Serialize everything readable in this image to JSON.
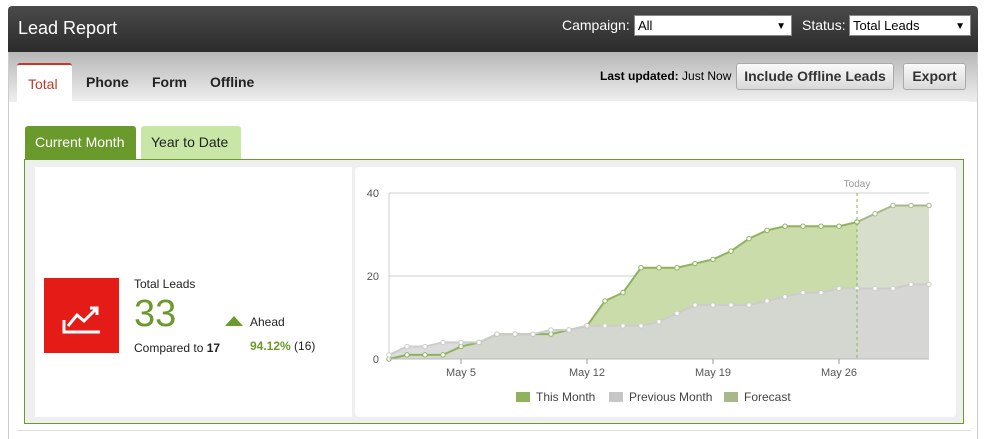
{
  "header": {
    "title": "Lead Report",
    "campaign_label": "Campaign:",
    "campaign_value": "All",
    "status_label": "Status:",
    "status_value": "Total Leads"
  },
  "tabs": [
    {
      "label": "Total",
      "active": true
    },
    {
      "label": "Phone",
      "active": false
    },
    {
      "label": "Form",
      "active": false
    },
    {
      "label": "Offline",
      "active": false
    }
  ],
  "toolbar": {
    "last_updated_label": "Last updated:",
    "last_updated_value": "Just Now",
    "include_offline_label": "Include Offline Leads",
    "export_label": "Export"
  },
  "subtabs": [
    {
      "label": "Current Month",
      "active": true
    },
    {
      "label": "Year to Date",
      "active": false
    }
  ],
  "kpi": {
    "icon": "trend-up-icon",
    "label": "Total Leads",
    "value": "33",
    "compared_prefix": "Compared to",
    "compared_value": "17",
    "ahead_label": "Ahead",
    "ahead_pct": "94.12%",
    "ahead_diff": "(16)"
  },
  "colors": {
    "header_bg": "#333333",
    "accent_green": "#6a9a2c",
    "tab_active_red": "#c0392b",
    "kpi_red": "#e41b17"
  },
  "chart_data": {
    "type": "area",
    "xlabels": [
      "May 5",
      "May 12",
      "May 19",
      "May 26"
    ],
    "xlabel_days": [
      5,
      12,
      19,
      26
    ],
    "x_range": [
      1,
      31
    ],
    "ylim": [
      0,
      40
    ],
    "yticks": [
      0,
      20,
      40
    ],
    "today_label": "Today",
    "today_day": 27,
    "grid": true,
    "legend_position": "bottom",
    "series": [
      {
        "name": "This Month",
        "color": "#8fb25c",
        "fill": "#c9dcaa",
        "x": [
          1,
          2,
          3,
          4,
          5,
          6,
          7,
          8,
          9,
          10,
          11,
          12,
          13,
          14,
          15,
          16,
          17,
          18,
          19,
          20,
          21,
          22,
          23,
          24,
          25,
          26,
          27
        ],
        "values": [
          0,
          1,
          1,
          1,
          3,
          4,
          6,
          6,
          6,
          6,
          7,
          8,
          14,
          16,
          22,
          22,
          22,
          23,
          24,
          26,
          29,
          31,
          32,
          32,
          32,
          32,
          33
        ]
      },
      {
        "name": "Previous Month",
        "color": "#cccccc",
        "fill": "#d6d6d6",
        "x": [
          1,
          2,
          3,
          4,
          5,
          6,
          7,
          8,
          9,
          10,
          11,
          12,
          13,
          14,
          15,
          16,
          17,
          18,
          19,
          20,
          21,
          22,
          23,
          24,
          25,
          26,
          27,
          28,
          29,
          30,
          31
        ],
        "values": [
          1,
          3,
          3,
          4,
          4,
          4,
          6,
          6,
          6,
          7,
          7,
          8,
          8,
          8,
          8,
          9,
          11,
          13,
          13,
          13,
          13,
          14,
          15,
          16,
          16,
          17,
          17,
          17,
          17,
          18,
          18
        ]
      },
      {
        "name": "Forecast",
        "color": "#a8b889",
        "fill": "#d7decb",
        "x": [
          27,
          28,
          29,
          30,
          31
        ],
        "values": [
          33,
          35,
          37,
          37,
          37
        ]
      }
    ]
  }
}
